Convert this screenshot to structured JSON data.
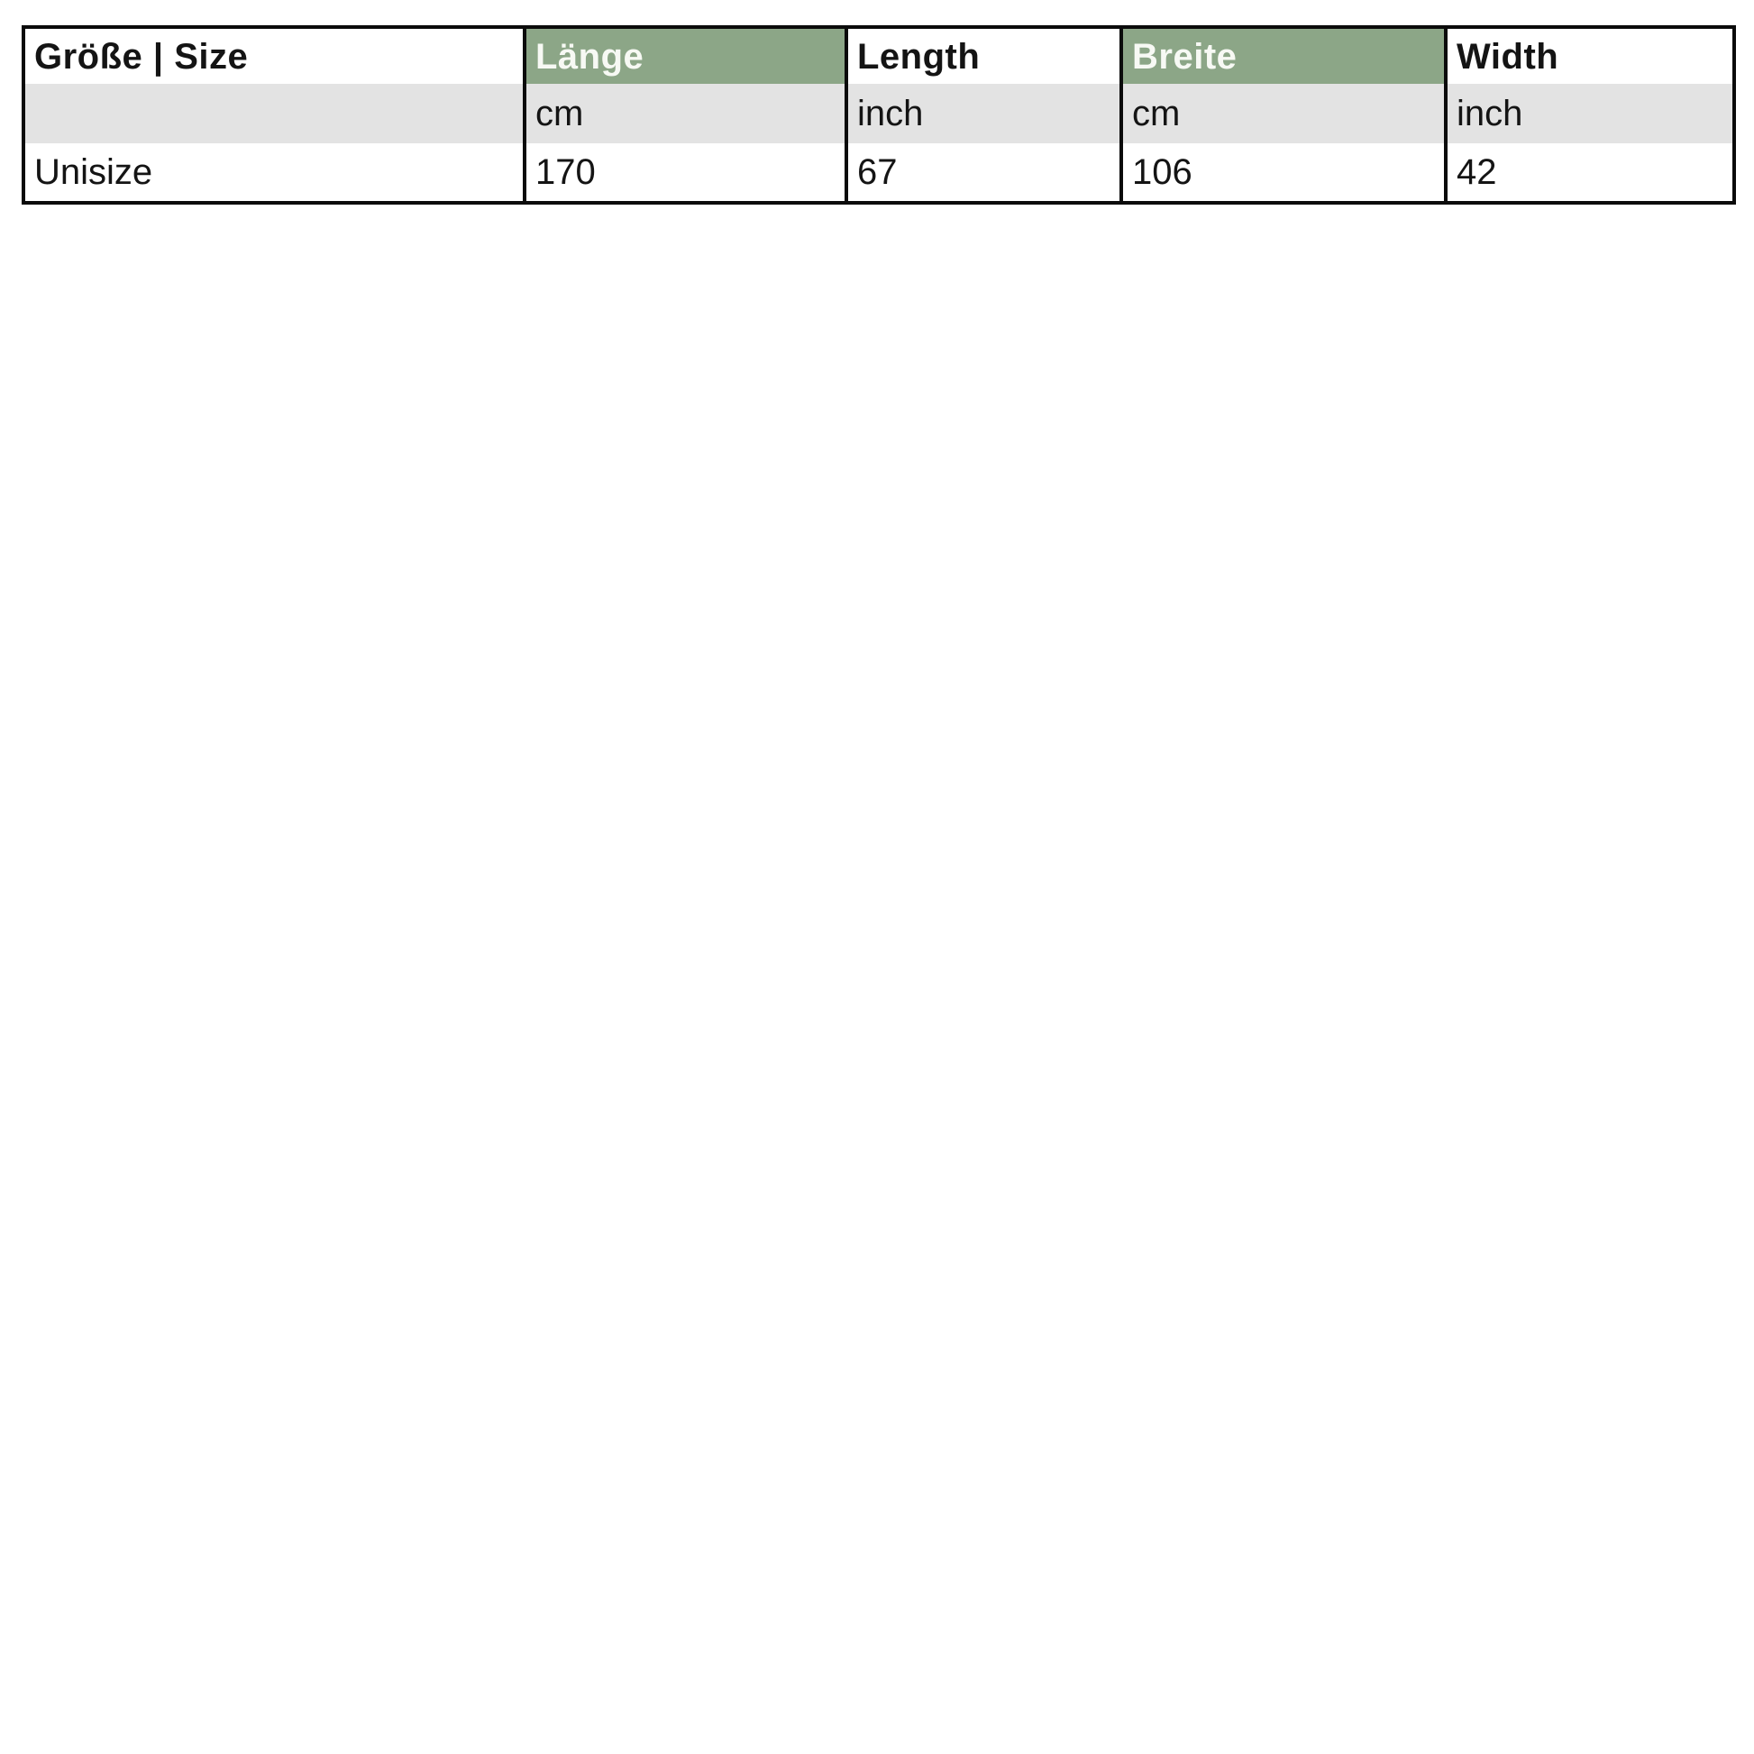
{
  "colors": {
    "green_header_bg": "#8CA687",
    "units_row_bg": "#E3E3E3",
    "border": "#0b0b0b"
  },
  "table": {
    "headers": [
      {
        "label": "Größe | Size",
        "variant": "plain"
      },
      {
        "label": "Länge",
        "variant": "green"
      },
      {
        "label": "Length",
        "variant": "plain"
      },
      {
        "label": "Breite",
        "variant": "green"
      },
      {
        "label": "Width",
        "variant": "plain"
      }
    ],
    "units_row": [
      "",
      "cm",
      "inch",
      "cm",
      "inch"
    ],
    "data_row": [
      "Unisize",
      "170",
      "67",
      "106",
      "42"
    ]
  }
}
